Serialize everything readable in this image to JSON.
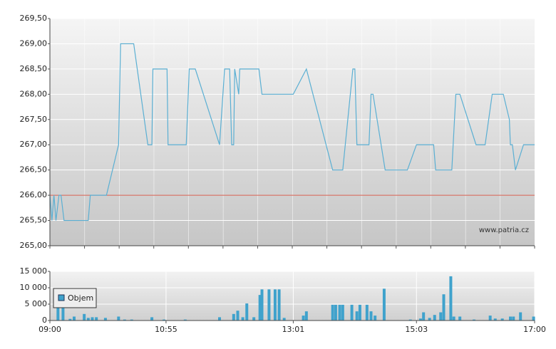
{
  "chart_data": [
    {
      "type": "line",
      "color": "#5aafd3",
      "x": [
        "09:00",
        "09:02",
        "09:04",
        "09:06",
        "09:09",
        "09:11",
        "09:14",
        "09:38",
        "09:40",
        "09:56",
        "10:08",
        "10:10",
        "10:23",
        "10:37",
        "10:41",
        "10:42",
        "10:56",
        "10:57",
        "11:15",
        "11:18",
        "11:24",
        "11:48",
        "11:53",
        "11:58",
        "12:00",
        "12:02",
        "12:03",
        "12:07",
        "12:08",
        "12:27",
        "12:30",
        "13:01",
        "13:14",
        "13:40",
        "13:50",
        "14:00",
        "14:02",
        "14:04",
        "14:16",
        "14:18",
        "14:20",
        "14:32",
        "14:54",
        "15:03",
        "15:20",
        "15:22",
        "15:38",
        "15:42",
        "15:46",
        "16:02",
        "16:11",
        "16:18",
        "16:29",
        "16:35",
        "16:36",
        "16:38",
        "16:41",
        "16:49",
        "17:00"
      ],
      "values": [
        266.0,
        265.5,
        266.0,
        265.5,
        266.0,
        266.0,
        265.5,
        265.5,
        266.0,
        266.0,
        267.0,
        269.0,
        269.0,
        267.0,
        267.0,
        268.5,
        268.5,
        267.0,
        267.0,
        268.5,
        268.5,
        267.0,
        268.5,
        268.5,
        267.0,
        267.0,
        268.5,
        268.0,
        268.5,
        268.5,
        268.0,
        268.0,
        268.5,
        266.5,
        266.5,
        268.5,
        268.5,
        267.0,
        267.0,
        268.0,
        268.0,
        266.5,
        266.5,
        267.0,
        267.0,
        266.5,
        266.5,
        268.0,
        268.0,
        267.0,
        267.0,
        268.0,
        268.0,
        267.5,
        267.0,
        267.0,
        266.5,
        267.0,
        267.0
      ],
      "xlim": [
        "09:00",
        "17:00"
      ],
      "ylim": [
        265.0,
        269.5
      ],
      "yticks": [
        {
          "value": 265.0,
          "label": "265,00"
        },
        {
          "value": 265.5,
          "label": "265,50"
        },
        {
          "value": 266.0,
          "label": "266,00"
        },
        {
          "value": 266.5,
          "label": "266,50"
        },
        {
          "value": 267.0,
          "label": "267,00"
        },
        {
          "value": 267.5,
          "label": "267,50"
        },
        {
          "value": 268.0,
          "label": "268,00"
        },
        {
          "value": 268.5,
          "label": "268,50"
        },
        {
          "value": 269.0,
          "label": "269,00"
        },
        {
          "value": 269.5,
          "label": "269,50"
        }
      ],
      "reference_line": {
        "value": 266.0,
        "color": "#d2584a"
      },
      "grid": true,
      "watermark": "www.patria.cz"
    },
    {
      "type": "bar",
      "x": [
        "09:08",
        "09:13",
        "09:20",
        "09:24",
        "09:34",
        "09:38",
        "09:42",
        "09:46",
        "09:55",
        "10:08",
        "10:14",
        "10:21",
        "10:41",
        "10:53",
        "11:14",
        "11:48",
        "12:02",
        "12:06",
        "12:11",
        "12:15",
        "12:22",
        "12:28",
        "12:30",
        "12:37",
        "12:43",
        "12:47",
        "12:52",
        "13:11",
        "13:14",
        "13:40",
        "13:43",
        "13:47",
        "13:50",
        "13:59",
        "14:04",
        "14:07",
        "14:14",
        "14:18",
        "14:22",
        "14:31",
        "14:57",
        "15:07",
        "15:10",
        "15:16",
        "15:21",
        "15:27",
        "15:30",
        "15:37",
        "15:40",
        "15:46",
        "16:00",
        "16:16",
        "16:21",
        "16:28",
        "16:36",
        "16:39",
        "16:46",
        "16:59"
      ],
      "series": [
        {
          "name": "Objem",
          "color": "#3fa2cc",
          "values": [
            4500,
            4000,
            500,
            1200,
            2000,
            800,
            1000,
            1000,
            800,
            1200,
            300,
            300,
            1000,
            300,
            300,
            1000,
            2000,
            3000,
            1000,
            5200,
            1000,
            7800,
            9500,
            9500,
            9500,
            9500,
            800,
            1500,
            2800,
            4800,
            4800,
            4800,
            4800,
            4800,
            2800,
            4800,
            4800,
            2800,
            1500,
            9700,
            300,
            600,
            2500,
            800,
            1700,
            2500,
            8000,
            13500,
            1200,
            1200,
            300,
            1500,
            600,
            600,
            1200,
            1200,
            2500,
            1200
          ]
        }
      ],
      "xlim": [
        "09:00",
        "17:00"
      ],
      "xticks": [
        "09:00",
        "10:55",
        "13:01",
        "15:03",
        "17:00"
      ],
      "ylim": [
        0,
        15000
      ],
      "yticks": [
        0,
        {
          "value": 5000,
          "label": "5 000"
        },
        {
          "value": 10000,
          "label": "10 000"
        },
        {
          "value": 15000,
          "label": "15 000"
        }
      ],
      "grid": true
    }
  ]
}
